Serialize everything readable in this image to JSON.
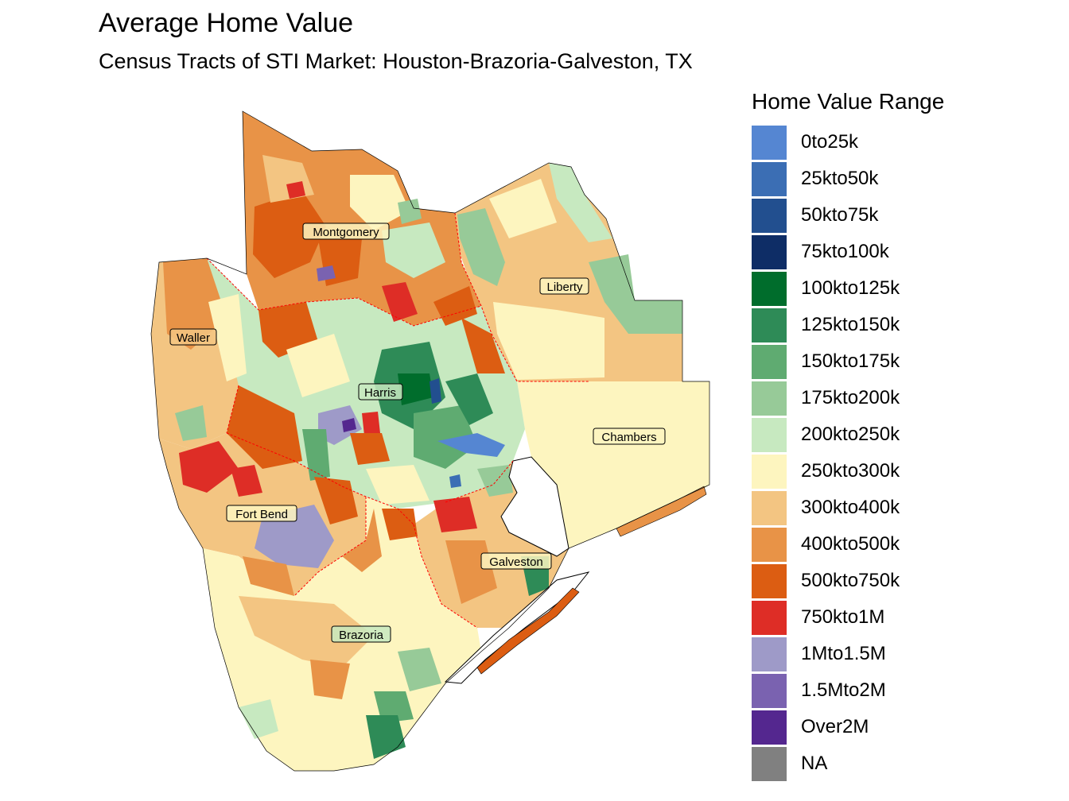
{
  "title": "Average Home Value",
  "subtitle": "Census Tracts of STI Market: Houston-Brazoria-Galveston, TX",
  "legend": {
    "title": "Home Value Range",
    "items": [
      {
        "label": "0to25k",
        "color": "#5586d2"
      },
      {
        "label": "25kto50k",
        "color": "#3b6eb4"
      },
      {
        "label": "50kto75k",
        "color": "#224f8f"
      },
      {
        "label": "75kto100k",
        "color": "#0e2d66"
      },
      {
        "label": "100kto125k",
        "color": "#006d2c"
      },
      {
        "label": "125kto150k",
        "color": "#2e8b57"
      },
      {
        "label": "150kto175k",
        "color": "#5fab71"
      },
      {
        "label": "175kto200k",
        "color": "#97ca98"
      },
      {
        "label": "200kto250k",
        "color": "#c7e9c0"
      },
      {
        "label": "250kto300k",
        "color": "#fdf5bf"
      },
      {
        "label": "300kto400k",
        "color": "#f3c582"
      },
      {
        "label": "400kto500k",
        "color": "#e89347"
      },
      {
        "label": "500kto750k",
        "color": "#dc5d12"
      },
      {
        "label": "750kto1M",
        "color": "#de2d26"
      },
      {
        "label": "1Mto1.5M",
        "color": "#9e9ac8"
      },
      {
        "label": "1.5Mto2M",
        "color": "#7a62b0"
      },
      {
        "label": "Over2M",
        "color": "#54278f"
      },
      {
        "label": "NA",
        "color": "#808080"
      }
    ]
  },
  "counties": [
    {
      "name": "Montgomery",
      "id": "montgomery",
      "color": "#e89347"
    },
    {
      "name": "Liberty",
      "id": "liberty",
      "color": "#f3c582"
    },
    {
      "name": "Waller",
      "id": "waller",
      "color": "#f3c582"
    },
    {
      "name": "Harris",
      "id": "harris",
      "color": "#c7e9c0"
    },
    {
      "name": "Chambers",
      "id": "chambers",
      "color": "#fdf5bf"
    },
    {
      "name": "Fort Bend",
      "id": "fortbend",
      "color": "#f3c582"
    },
    {
      "name": "Galveston",
      "id": "galveston",
      "color": "#f3c582"
    },
    {
      "name": "Brazoria",
      "id": "brazoria",
      "color": "#fdf5bf"
    }
  ],
  "boundary_color": "#ff0000",
  "water_color": "#ffffff"
}
